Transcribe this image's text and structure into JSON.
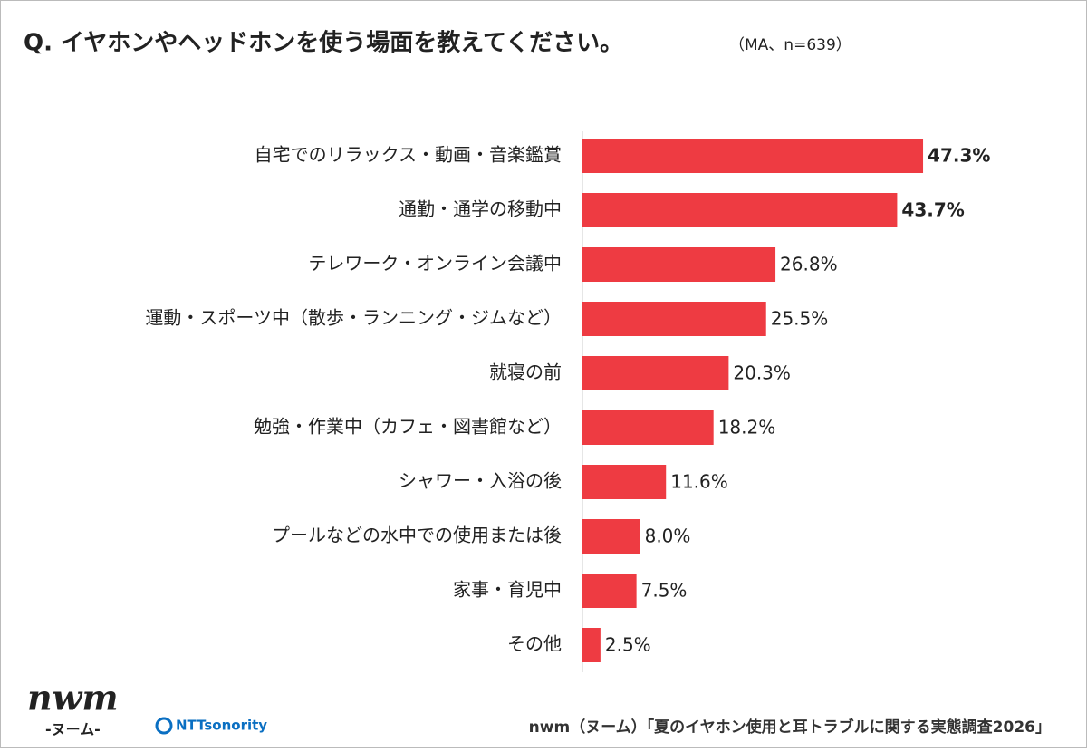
{
  "chart_data": {
    "type": "bar",
    "orientation": "horizontal",
    "title": "Q. イヤホンやヘッドホンを使う場面を教えてください。",
    "subtitle": "（MA、n=639）",
    "categories": [
      "自宅でのリラックス・動画・音楽鑑賞",
      "通勤・通学の移動中",
      "テレワーク・オンライン会議中",
      "運動・スポーツ中（散歩・ランニング・ジムなど）",
      "就寝の前",
      "勉強・作業中（カフェ・図書館など）",
      "シャワー・入浴の後",
      "プールなどの水中での使用または後",
      "家事・育児中",
      "その他"
    ],
    "values": [
      47.3,
      43.7,
      26.8,
      25.5,
      20.3,
      18.2,
      11.6,
      8.0,
      7.5,
      2.5
    ],
    "value_labels": [
      "47.3%",
      "43.7%",
      "26.8%",
      "25.5%",
      "20.3%",
      "18.2%",
      "11.6%",
      "8.0%",
      "7.5%",
      "2.5%"
    ],
    "color": "#ee3b42",
    "source": "nwm（ヌーム）「夏のイヤホン使用と耳トラブルに関する実態調査2026」",
    "logo_nwm": "nwm",
    "logo_nwm_kana": "-ヌーム-",
    "logo_ntt": "NTTsonority"
  }
}
